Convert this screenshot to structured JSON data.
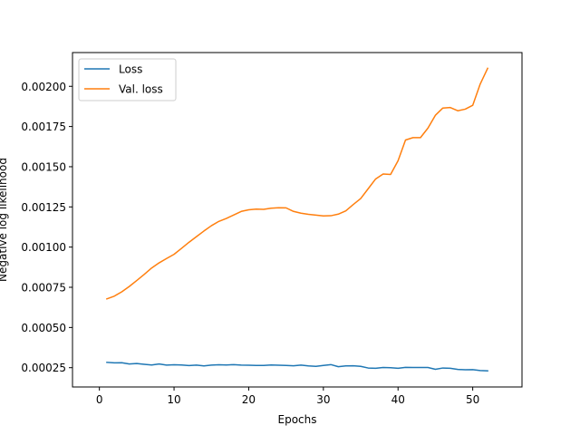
{
  "chart_data": {
    "type": "line",
    "title": "",
    "xlabel": "Epochs",
    "ylabel": "Negative log likelihood",
    "xlim": [
      -3.6,
      56.6
    ],
    "ylim": [
      0.00013,
      0.00221
    ],
    "xticks": [
      0,
      10,
      20,
      30,
      40,
      50
    ],
    "xtick_labels": [
      "0",
      "10",
      "20",
      "30",
      "40",
      "50"
    ],
    "yticks": [
      0.00025,
      0.0005,
      0.00075,
      0.001,
      0.00125,
      0.0015,
      0.00175,
      0.002
    ],
    "ytick_labels": [
      "0.00025",
      "0.00050",
      "0.00075",
      "0.00100",
      "0.00125",
      "0.00150",
      "0.00175",
      "0.00200"
    ],
    "grid": false,
    "legend_position": "top-left",
    "x": [
      1,
      2,
      3,
      4,
      5,
      6,
      7,
      8,
      9,
      10,
      11,
      12,
      13,
      14,
      15,
      16,
      17,
      18,
      19,
      20,
      21,
      22,
      23,
      24,
      25,
      26,
      27,
      28,
      29,
      30,
      31,
      32,
      33,
      34,
      35,
      36,
      37,
      38,
      39,
      40,
      41,
      42,
      43,
      44,
      45,
      46,
      47,
      48,
      49,
      50,
      51,
      52
    ],
    "series": [
      {
        "name": "Loss",
        "color": "#1f77b4",
        "values": [
          0.000283,
          0.00028,
          0.000281,
          0.000273,
          0.000276,
          0.000271,
          0.000267,
          0.000273,
          0.000266,
          0.000268,
          0.000267,
          0.000263,
          0.000266,
          0.000261,
          0.000266,
          0.000268,
          0.000267,
          0.000269,
          0.000266,
          0.000265,
          0.000264,
          0.000264,
          0.000267,
          0.000265,
          0.000264,
          0.000262,
          0.000266,
          0.000261,
          0.000258,
          0.000264,
          0.000269,
          0.000256,
          0.000261,
          0.000262,
          0.000258,
          0.000248,
          0.000246,
          0.000251,
          0.00025,
          0.000246,
          0.000252,
          0.000251,
          0.000251,
          0.000251,
          0.00024,
          0.000248,
          0.000246,
          0.000239,
          0.000237,
          0.000238,
          0.000232,
          0.00023
        ]
      },
      {
        "name": "Val. loss",
        "color": "#ff7f0e",
        "values": [
          0.000678,
          0.000695,
          0.000722,
          0.000755,
          0.000792,
          0.00083,
          0.00087,
          0.000902,
          0.000929,
          0.000955,
          0.000992,
          0.00103,
          0.001065,
          0.0011,
          0.001133,
          0.00116,
          0.001178,
          0.0012,
          0.001222,
          0.001232,
          0.001236,
          0.001235,
          0.001242,
          0.001245,
          0.001244,
          0.001222,
          0.001211,
          0.001204,
          0.001199,
          0.001194,
          0.001195,
          0.001205,
          0.001225,
          0.001265,
          0.001302,
          0.001363,
          0.001424,
          0.001455,
          0.001452,
          0.001537,
          0.001666,
          0.001681,
          0.001681,
          0.00174,
          0.00182,
          0.001865,
          0.001868,
          0.001848,
          0.001858,
          0.001882,
          0.002014,
          0.002112
        ]
      }
    ]
  }
}
